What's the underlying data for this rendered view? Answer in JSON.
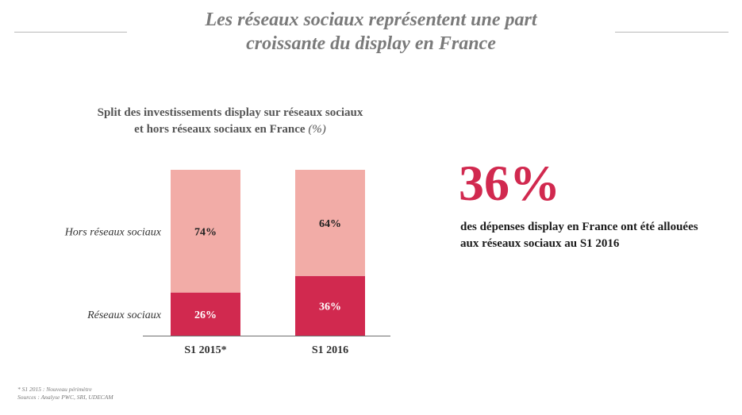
{
  "header": {
    "title_line1": "Les réseaux sociaux représentent une part",
    "title_line2": "croissante du display en France"
  },
  "chart_title": {
    "line1": "Split des investissements display sur réseaux sociaux",
    "line2": "et hors réseaux sociaux en France",
    "unit": "(%)"
  },
  "chart_data": {
    "type": "bar",
    "stacked": true,
    "title": "Split des investissements display sur réseaux sociaux et hors réseaux sociaux en France (%)",
    "categories": [
      "S1 2015*",
      "S1 2016"
    ],
    "series": [
      {
        "name": "Réseaux sociaux",
        "values": [
          26,
          36
        ],
        "labels": [
          "26%",
          "36%"
        ],
        "color": "#d1294f",
        "label_color": "#ffffff"
      },
      {
        "name": "Hors réseaux sociaux",
        "values": [
          74,
          64
        ],
        "labels": [
          "74%",
          "64%"
        ],
        "color": "#f2aca7",
        "label_color": "#222222"
      }
    ],
    "ylim": [
      0,
      100
    ]
  },
  "callout": {
    "value": "36%",
    "text": "des dépenses display en France ont été allouées aux réseaux sociaux au S1 2016",
    "color": "#d1294f"
  },
  "footnote": {
    "line1": "* S1 2015 : Nouveau périmètre",
    "line2": "Sources : Analyse PWC, SRI, UDECAM"
  }
}
